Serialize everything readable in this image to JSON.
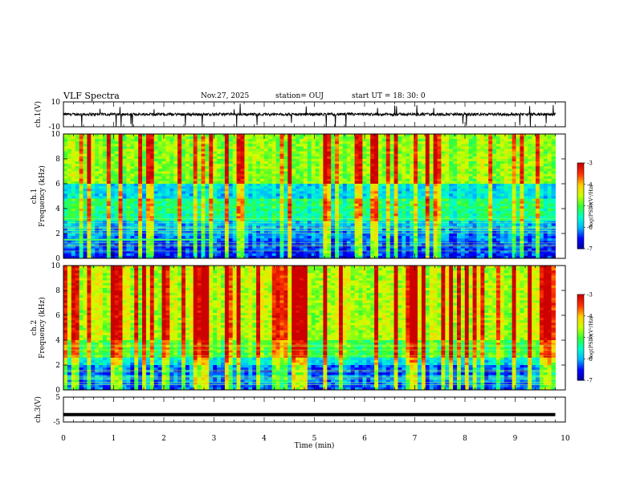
{
  "header": {
    "title": "VLF Spectra",
    "date": "Nov.27, 2025",
    "station": "station= OUJ",
    "start": "start  UT  =   18: 30: 0"
  },
  "chart_data": [
    {
      "type": "line",
      "panel": "ch1-waveform",
      "ylabel": "ch.1(V)",
      "ylim": [
        -10,
        10
      ],
      "ytick_labels": [
        "10",
        "-10"
      ],
      "baseline": 0,
      "note": "dense noisy waveform around 0 V with occasional negative spikes"
    },
    {
      "type": "heatmap",
      "panel": "ch1-spectrogram",
      "ylabel": "ch.1\nFrequency (kHz)",
      "ylim": [
        0,
        10
      ],
      "ytick_labels": [
        "0",
        "2",
        "4",
        "6",
        "8",
        "10"
      ],
      "colorbar": {
        "range": [
          -7,
          -3
        ],
        "tick_labels": [
          "-3",
          "-4",
          "-5",
          "-6",
          "-7"
        ],
        "label": "log(PSD)(V²/Hz)"
      }
    },
    {
      "type": "heatmap",
      "panel": "ch2-spectrogram",
      "ylabel": "ch.2\nFrequency (kHz)",
      "ylim": [
        0,
        10
      ],
      "ytick_labels": [
        "0",
        "2",
        "4",
        "6",
        "8",
        "10"
      ],
      "colorbar": {
        "range": [
          -7,
          -3
        ],
        "tick_labels": [
          "-3",
          "-4",
          "-5",
          "-6",
          "-7"
        ],
        "label": "log(PSD)(V²/Hz)"
      }
    },
    {
      "type": "line",
      "panel": "ch3-waveform",
      "ylabel": "ch.3(V)",
      "ylim": [
        -5,
        5
      ],
      "ytick_labels": [
        "5",
        "-5"
      ],
      "values_note": "constant thick line at about -2 V",
      "y": -2
    }
  ],
  "xaxis": {
    "label": "Time (min)",
    "range": [
      0,
      10
    ],
    "tick_labels": [
      "0",
      "1",
      "2",
      "3",
      "4",
      "5",
      "6",
      "7",
      "8",
      "9",
      "10"
    ],
    "data_end": 9.8
  },
  "colors": {
    "background": "#ffffff",
    "axes": "#000000",
    "colormap": [
      "#00009a",
      "#0000ff",
      "#00b4ff",
      "#00ffcc",
      "#33ff33",
      "#ccff00",
      "#ffd000",
      "#ff3300",
      "#cc0000"
    ]
  }
}
